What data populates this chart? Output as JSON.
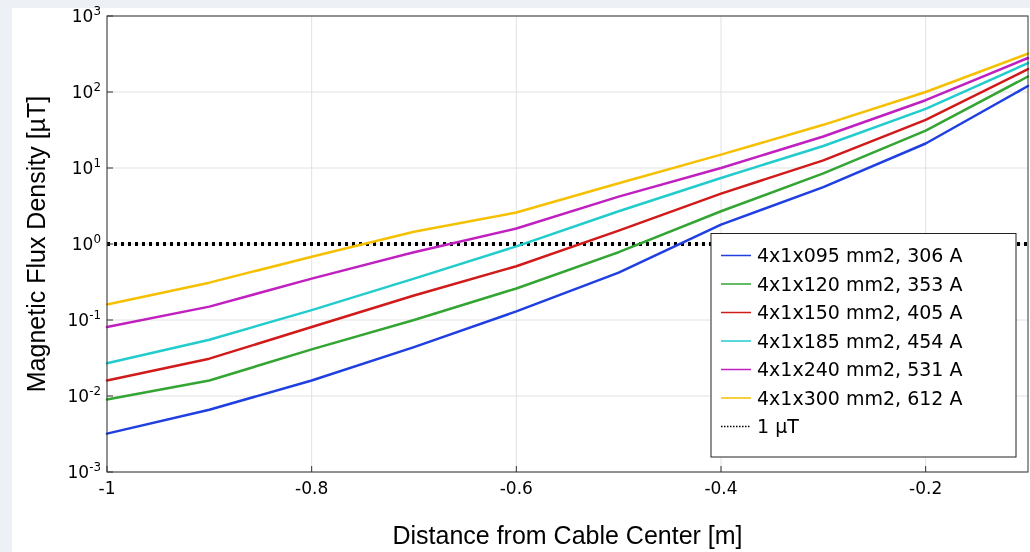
{
  "chart_data": {
    "type": "line",
    "xlabel": "Distance from Cable Center [m]",
    "ylabel": "Magnetic Flux Density [µT]",
    "x": [
      -1,
      -0.9,
      -0.8,
      -0.7,
      -0.6,
      -0.5,
      -0.4,
      -0.3,
      -0.2,
      -0.1
    ],
    "series": [
      {
        "name": "4x1x095 mm2, 306 A",
        "color": "#1f3fe0",
        "values": [
          0.0032,
          0.0066,
          0.016,
          0.044,
          0.13,
          0.42,
          1.8,
          5.6,
          21,
          120
        ]
      },
      {
        "name": "4x1x120 mm2, 353 A",
        "color": "#33a532",
        "values": [
          0.009,
          0.016,
          0.041,
          0.1,
          0.26,
          0.78,
          2.7,
          8.5,
          31,
          160
        ]
      },
      {
        "name": "4x1x150 mm2, 405 A",
        "color": "#d11a1a",
        "values": [
          0.016,
          0.031,
          0.081,
          0.21,
          0.51,
          1.5,
          4.6,
          12.6,
          43,
          200
        ]
      },
      {
        "name": "4x1x185 mm2, 454 A",
        "color": "#22cccc",
        "values": [
          0.027,
          0.055,
          0.135,
          0.35,
          0.93,
          2.7,
          7.4,
          19.5,
          60,
          240
        ]
      },
      {
        "name": "4x1x240 mm2, 531 A",
        "color": "#c020c0",
        "values": [
          0.081,
          0.15,
          0.35,
          0.78,
          1.6,
          4.2,
          10,
          26,
          78,
          280
        ]
      },
      {
        "name": "4x1x300 mm2, 612 A",
        "color": "#f5c000",
        "values": [
          0.16,
          0.31,
          0.68,
          1.45,
          2.6,
          6.3,
          15,
          37,
          100,
          320
        ]
      }
    ],
    "ref_lines": [
      {
        "axis": "y",
        "value": 1,
        "label": "1 µT",
        "color": "#000000",
        "line_style": "dotted"
      }
    ],
    "log": "y",
    "xlim": [
      -1,
      -0.1
    ],
    "xticks": [
      -1,
      -0.8,
      -0.6,
      -0.4,
      -0.2
    ],
    "ylim": [
      0.001,
      1000
    ],
    "yticks": [
      {
        "value": 0.001,
        "label": "10$^{-3}$"
      },
      {
        "value": 0.01,
        "label": "10$^{-2}$"
      },
      {
        "value": 0.1,
        "label": "10$^{-1}$"
      },
      {
        "value": 1,
        "label": "10$^{0}$"
      },
      {
        "value": 10,
        "label": "10$^{1}$"
      },
      {
        "value": 100,
        "label": "10$^{2}$"
      },
      {
        "value": 1000,
        "label": "10$^{3}$"
      }
    ],
    "grid": true,
    "legend": "bottom right",
    "line_style": "solid",
    "marker": "none"
  }
}
